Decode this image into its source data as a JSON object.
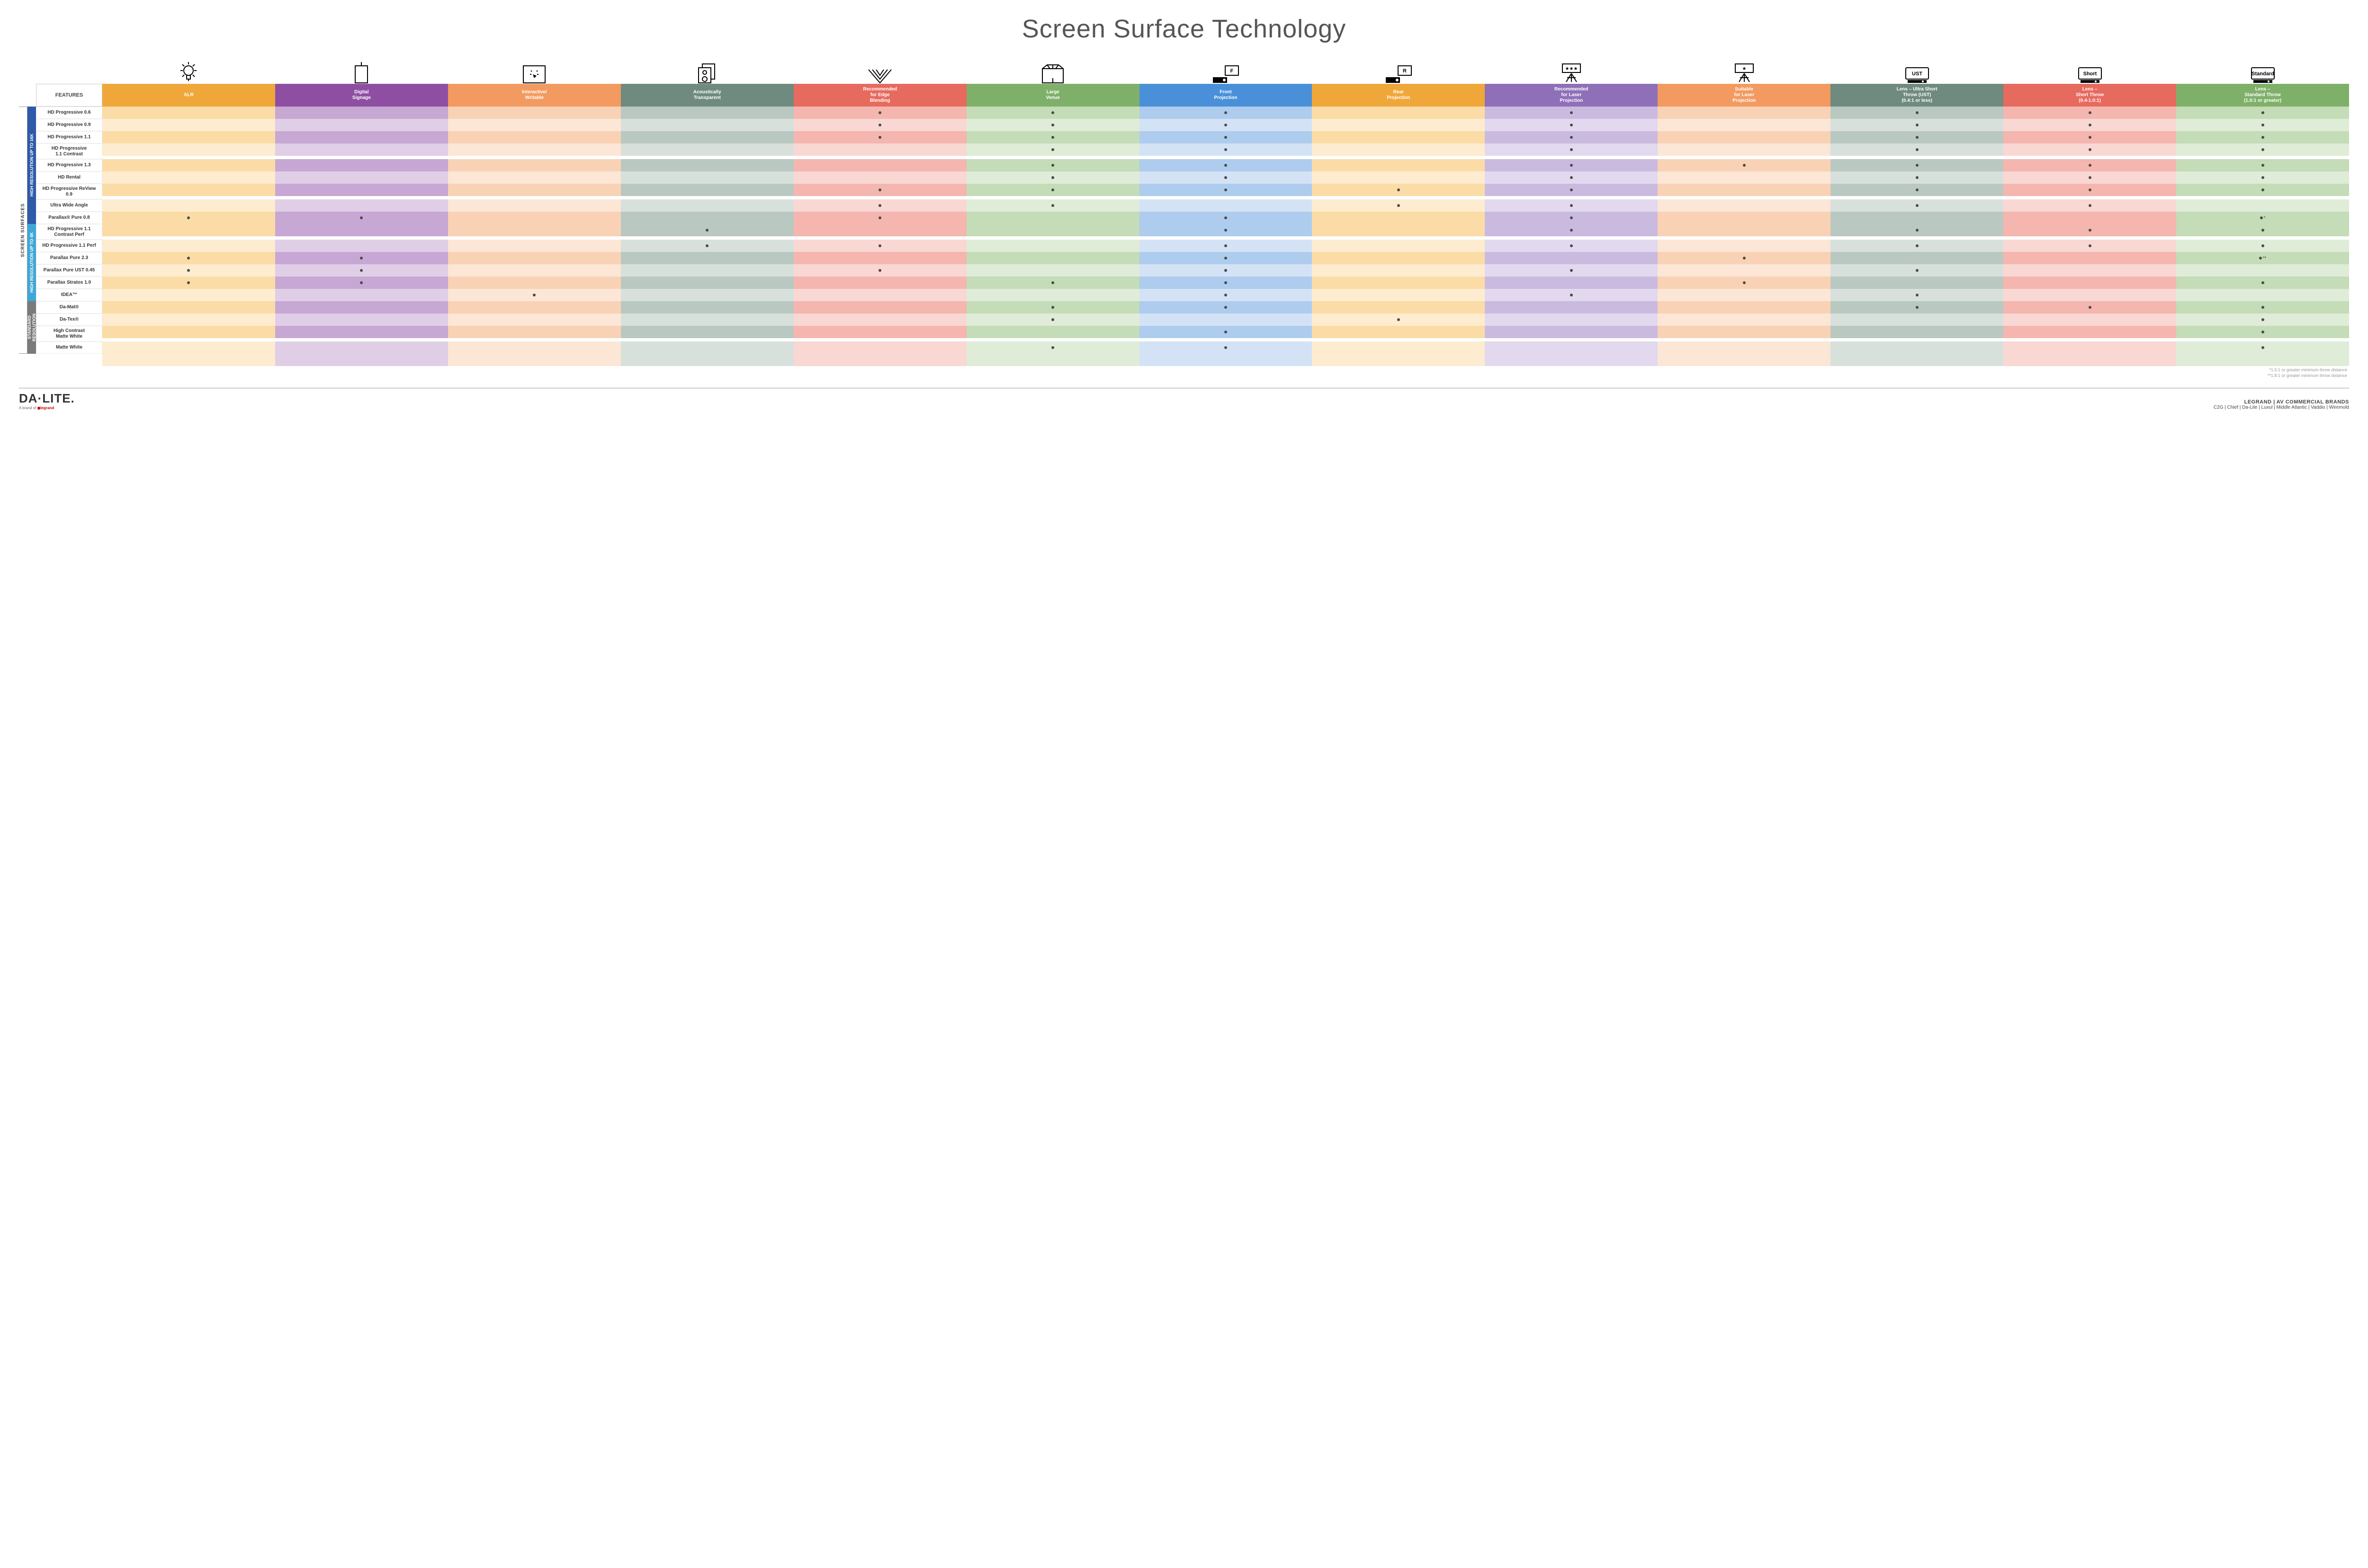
{
  "title": "Screen Surface Technology",
  "columns": [
    {
      "key": "alr",
      "label": "ALR",
      "color": "#f0a73a",
      "light": "#fcdca6",
      "lighter": "#fdeccf"
    },
    {
      "key": "signage",
      "label": "Digital\nSignage",
      "color": "#8e4fa3",
      "light": "#c7a7d3",
      "lighter": "#e0cee7"
    },
    {
      "key": "writable",
      "label": "Interactive/\nWritable",
      "color": "#f29a5f",
      "light": "#f9d2b5",
      "lighter": "#fce6d6"
    },
    {
      "key": "acoustic",
      "label": "Acoustically\nTransparent",
      "color": "#6f8a7f",
      "light": "#b9c8c1",
      "lighter": "#d8e0dc"
    },
    {
      "key": "edge",
      "label": "Recommended\nfor Edge\nBlending",
      "color": "#e76a5e",
      "light": "#f4b6af",
      "lighter": "#f9d7d3"
    },
    {
      "key": "large",
      "label": "Large\nVenue",
      "color": "#7fb069",
      "light": "#c4dcb7",
      "lighter": "#dfecd7"
    },
    {
      "key": "front",
      "label": "Front\nProjection",
      "color": "#4a90d9",
      "light": "#aeccee",
      "lighter": "#d3e3f5"
    },
    {
      "key": "rear",
      "label": "Rear\nProjection",
      "color": "#f0a73a",
      "light": "#fcdca6",
      "lighter": "#fdeccf"
    },
    {
      "key": "reclaser",
      "label": "Recommended\nfor Laser\nProjection",
      "color": "#8e6fb8",
      "light": "#cabae0",
      "lighter": "#e2d9ee"
    },
    {
      "key": "suitlaser",
      "label": "Suitable\nfor Laser\nProjection",
      "color": "#f29a5f",
      "light": "#f9d2b5",
      "lighter": "#fce6d6"
    },
    {
      "key": "ust",
      "label": "Lens – Ultra Short\nThrow (UST)\n(0.4:1 or less)",
      "color": "#6f8a7f",
      "light": "#b9c8c1",
      "lighter": "#d8e0dc"
    },
    {
      "key": "short",
      "label": "Lens –\nShort Throw\n(0.4-1.0:1)",
      "color": "#e76a5e",
      "light": "#f4b6af",
      "lighter": "#f9d7d3"
    },
    {
      "key": "std",
      "label": "Lens –\nStandard Throw\n(1.0:1 or greater)",
      "color": "#7fb069",
      "light": "#c4dcb7",
      "lighter": "#dfecd7"
    }
  ],
  "groups": [
    {
      "label": "HIGH RESOLUTION UP TO 16K",
      "color": "#2e5aa8",
      "rows": [
        {
          "name": "HD Progressive 0.6",
          "dots": {
            "edge": "•",
            "large": "•",
            "front": "•",
            "reclaser": "•",
            "ust": "•",
            "short": "•",
            "std": "•"
          }
        },
        {
          "name": "HD Progressive 0.9",
          "dots": {
            "edge": "•",
            "large": "•",
            "front": "•",
            "reclaser": "•",
            "ust": "•",
            "short": "•",
            "std": "•"
          }
        },
        {
          "name": "HD Progressive 1.1",
          "dots": {
            "edge": "•",
            "large": "•",
            "front": "•",
            "reclaser": "•",
            "ust": "•",
            "short": "•",
            "std": "•"
          }
        },
        {
          "name": "HD Progressive\n1.1 Contrast",
          "dots": {
            "large": "•",
            "front": "•",
            "reclaser": "•",
            "ust": "•",
            "short": "•",
            "std": "•"
          }
        },
        {
          "name": "HD Progressive 1.3",
          "dots": {
            "large": "•",
            "front": "•",
            "reclaser": "•",
            "suitlaser": "•",
            "ust": "•",
            "short": "•",
            "std": "•"
          }
        },
        {
          "name": "HD Rental",
          "dots": {
            "large": "•",
            "front": "•",
            "reclaser": "•",
            "ust": "•",
            "short": "•",
            "std": "•"
          }
        },
        {
          "name": "HD Progressive ReView 0.9",
          "dots": {
            "edge": "•",
            "large": "•",
            "front": "•",
            "rear": "•",
            "reclaser": "•",
            "ust": "•",
            "short": "•",
            "std": "•"
          }
        },
        {
          "name": "Ultra Wide Angle",
          "dots": {
            "edge": "•",
            "large": "•",
            "rear": "•",
            "reclaser": "•",
            "ust": "•",
            "short": "•"
          }
        },
        {
          "name": "Parallax® Pure 0.8",
          "dots": {
            "alr": "•",
            "signage": "•",
            "edge": "•",
            "front": "•",
            "reclaser": "•",
            "std": "•*"
          }
        }
      ]
    },
    {
      "label": "HIGH RESOLUTION UP TO 4K",
      "color": "#3fa7d6",
      "rows": [
        {
          "name": "HD Progressive 1.1\nContrast Perf",
          "dots": {
            "acoustic": "•",
            "front": "•",
            "reclaser": "•",
            "ust": "•",
            "short": "•",
            "std": "•"
          }
        },
        {
          "name": "HD Progressive 1.1 Perf",
          "dots": {
            "acoustic": "•",
            "edge": "•",
            "front": "•",
            "reclaser": "•",
            "ust": "•",
            "short": "•",
            "std": "•"
          }
        },
        {
          "name": "Parallax Pure 2.3",
          "dots": {
            "alr": "•",
            "signage": "•",
            "front": "•",
            "suitlaser": "•",
            "std": "•**"
          }
        },
        {
          "name": "Parallax Pure UST 0.45",
          "dots": {
            "alr": "•",
            "signage": "•",
            "edge": "•",
            "front": "•",
            "reclaser": "•",
            "ust": "•"
          }
        },
        {
          "name": "Parallax Stratos 1.0",
          "dots": {
            "alr": "•",
            "signage": "•",
            "large": "•",
            "front": "•",
            "suitlaser": "•",
            "std": "•"
          }
        },
        {
          "name": "IDEA™",
          "dots": {
            "writable": "•",
            "front": "•",
            "reclaser": "•",
            "ust": "•"
          }
        }
      ]
    },
    {
      "label": "STANDARD\nRESOLUTION",
      "color": "#7a7a7a",
      "rows": [
        {
          "name": "Da-Mat®",
          "dots": {
            "large": "•",
            "front": "•",
            "ust": "•",
            "short": "•",
            "std": "•"
          }
        },
        {
          "name": "Da-Tex®",
          "dots": {
            "large": "•",
            "rear": "•",
            "std": "•"
          }
        },
        {
          "name": "High Contrast\nMatte White",
          "dots": {
            "front": "•",
            "std": "•"
          }
        },
        {
          "name": "Matte White",
          "dots": {
            "large": "•",
            "front": "•",
            "std": "•"
          }
        }
      ]
    }
  ],
  "sideLabel": "SCREEN SURFACES",
  "featuresHeader": "FEATURES",
  "footnotes": [
    "*1.5:1 or greater minimum throw distance",
    "**1.8:1 or greater minimum throw distance"
  ],
  "footer": {
    "logo": "DA·LITE.",
    "logoSub": "A brand of",
    "logoBrand": "legrand",
    "right1": "LEGRAND | AV COMMERCIAL BRANDS",
    "right2": "C2G  |  Chief  |  Da-Lite  |  Luxul  |  Middle Atlantic  |  Vaddio  |  Wiremold"
  },
  "iconLabels": [
    "",
    "",
    "",
    "",
    "",
    "",
    "F",
    "R",
    "★★★",
    "★",
    "UST",
    "Short",
    "Standard"
  ]
}
